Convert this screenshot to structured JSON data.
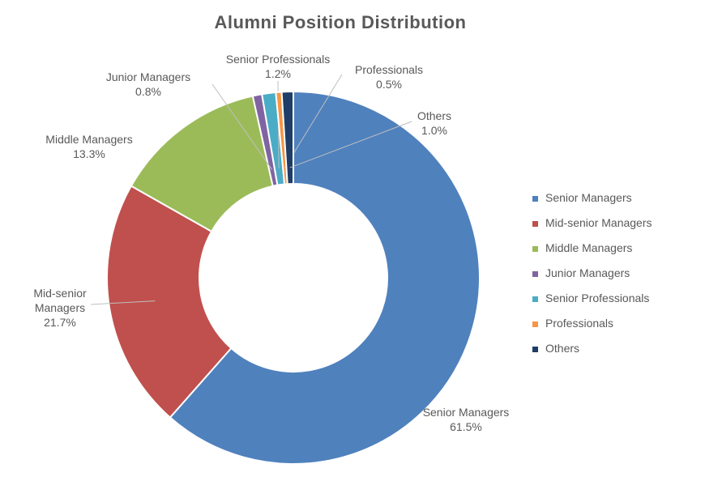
{
  "chart_data": {
    "type": "donut",
    "title": "Alumni Position Distribution",
    "categories": [
      "Senior Managers",
      "Mid-senior Managers",
      "Middle Managers",
      "Junior Managers",
      "Senior Professionals",
      "Professionals",
      "Others"
    ],
    "values": [
      61.5,
      21.7,
      13.3,
      0.8,
      1.2,
      0.5,
      1.0
    ],
    "value_labels": [
      "61.5%",
      "21.7%",
      "13.3%",
      "0.8%",
      "1.2%",
      "0.5%",
      "1.0%"
    ],
    "colors": [
      "#4f81bd",
      "#c0504d",
      "#9bbb59",
      "#8064a2",
      "#4bacc6",
      "#f79646",
      "#1f3d66"
    ],
    "legend": "right"
  }
}
